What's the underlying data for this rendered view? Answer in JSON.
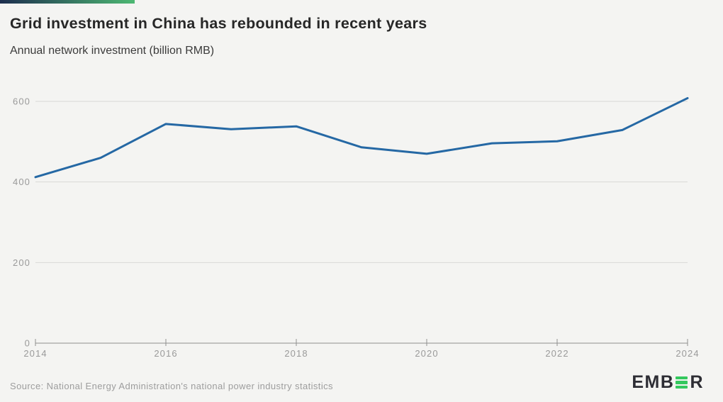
{
  "accent_bar": {
    "color_start": "#1d2e4e",
    "color_end": "#4db873"
  },
  "header": {
    "title": "Grid investment in China has rebounded in recent years",
    "subtitle": "Annual network investment (billion RMB)"
  },
  "chart_data": {
    "type": "line",
    "title": "Grid investment in China has rebounded in recent years",
    "subtitle": "Annual network investment (billion RMB)",
    "x": [
      2014,
      2015,
      2016,
      2017,
      2018,
      2019,
      2020,
      2021,
      2022,
      2023,
      2024
    ],
    "series": [
      {
        "name": "Annual network investment (billion RMB)",
        "values": [
          412,
          460,
          544,
          531,
          538,
          486,
          470,
          496,
          501,
          529,
          608
        ]
      }
    ],
    "xlabel": "",
    "ylabel": "billion RMB",
    "ylim": [
      0,
      600
    ],
    "yticks": [
      0,
      200,
      400,
      600
    ],
    "xticks": [
      2014,
      2016,
      2018,
      2020,
      2022,
      2024
    ],
    "grid": "horizontal",
    "legend": "none",
    "colors": {
      "line": "#2568a4",
      "grid": "#d9d9d6",
      "axis": "#8f8f8f",
      "tick_label": "#9a9a9a"
    }
  },
  "footer": {
    "source": "Source: National Energy Administration's national power industry statistics",
    "logo": {
      "text": "EMBER",
      "prefix": "EMB",
      "suffix": "R",
      "bar_color": "#34c85e",
      "text_color": "#2d2d34"
    }
  }
}
